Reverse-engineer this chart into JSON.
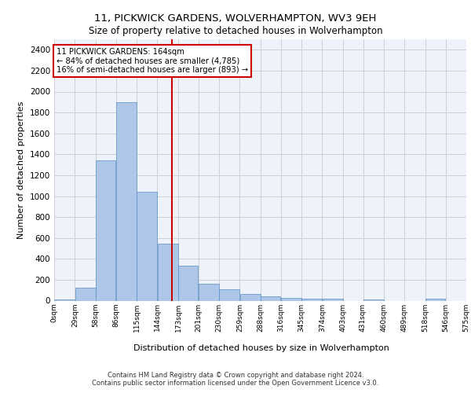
{
  "title1": "11, PICKWICK GARDENS, WOLVERHAMPTON, WV3 9EH",
  "title2": "Size of property relative to detached houses in Wolverhampton",
  "xlabel": "Distribution of detached houses by size in Wolverhampton",
  "ylabel": "Number of detached properties",
  "footer1": "Contains HM Land Registry data © Crown copyright and database right 2024.",
  "footer2": "Contains public sector information licensed under the Open Government Licence v3.0.",
  "annotation_line1": "11 PICKWICK GARDENS: 164sqm",
  "annotation_line2": "← 84% of detached houses are smaller (4,785)",
  "annotation_line3": "16% of semi-detached houses are larger (893) →",
  "bin_edges": [
    0,
    29,
    58,
    86,
    115,
    144,
    173,
    201,
    230,
    259,
    288,
    316,
    345,
    374,
    403,
    431,
    460,
    489,
    518,
    546,
    575
  ],
  "bin_labels": [
    "0sqm",
    "29sqm",
    "58sqm",
    "86sqm",
    "115sqm",
    "144sqm",
    "173sqm",
    "201sqm",
    "230sqm",
    "259sqm",
    "288sqm",
    "316sqm",
    "345sqm",
    "374sqm",
    "403sqm",
    "431sqm",
    "460sqm",
    "489sqm",
    "518sqm",
    "546sqm",
    "575sqm"
  ],
  "bar_heights": [
    15,
    125,
    1345,
    1895,
    1040,
    545,
    335,
    165,
    110,
    62,
    38,
    28,
    22,
    18,
    0,
    15,
    0,
    0,
    18,
    0,
    15
  ],
  "bar_color": "#aec6e8",
  "bar_edge_color": "#5a8fc3",
  "vline_x": 164,
  "vline_color": "#cc0000",
  "annotation_box_color": "#cc0000",
  "ylim": [
    0,
    2500
  ],
  "yticks": [
    0,
    200,
    400,
    600,
    800,
    1000,
    1200,
    1400,
    1600,
    1800,
    2000,
    2200,
    2400
  ],
  "grid_color": "#d0d0d0",
  "bg_color": "#eef2fa"
}
